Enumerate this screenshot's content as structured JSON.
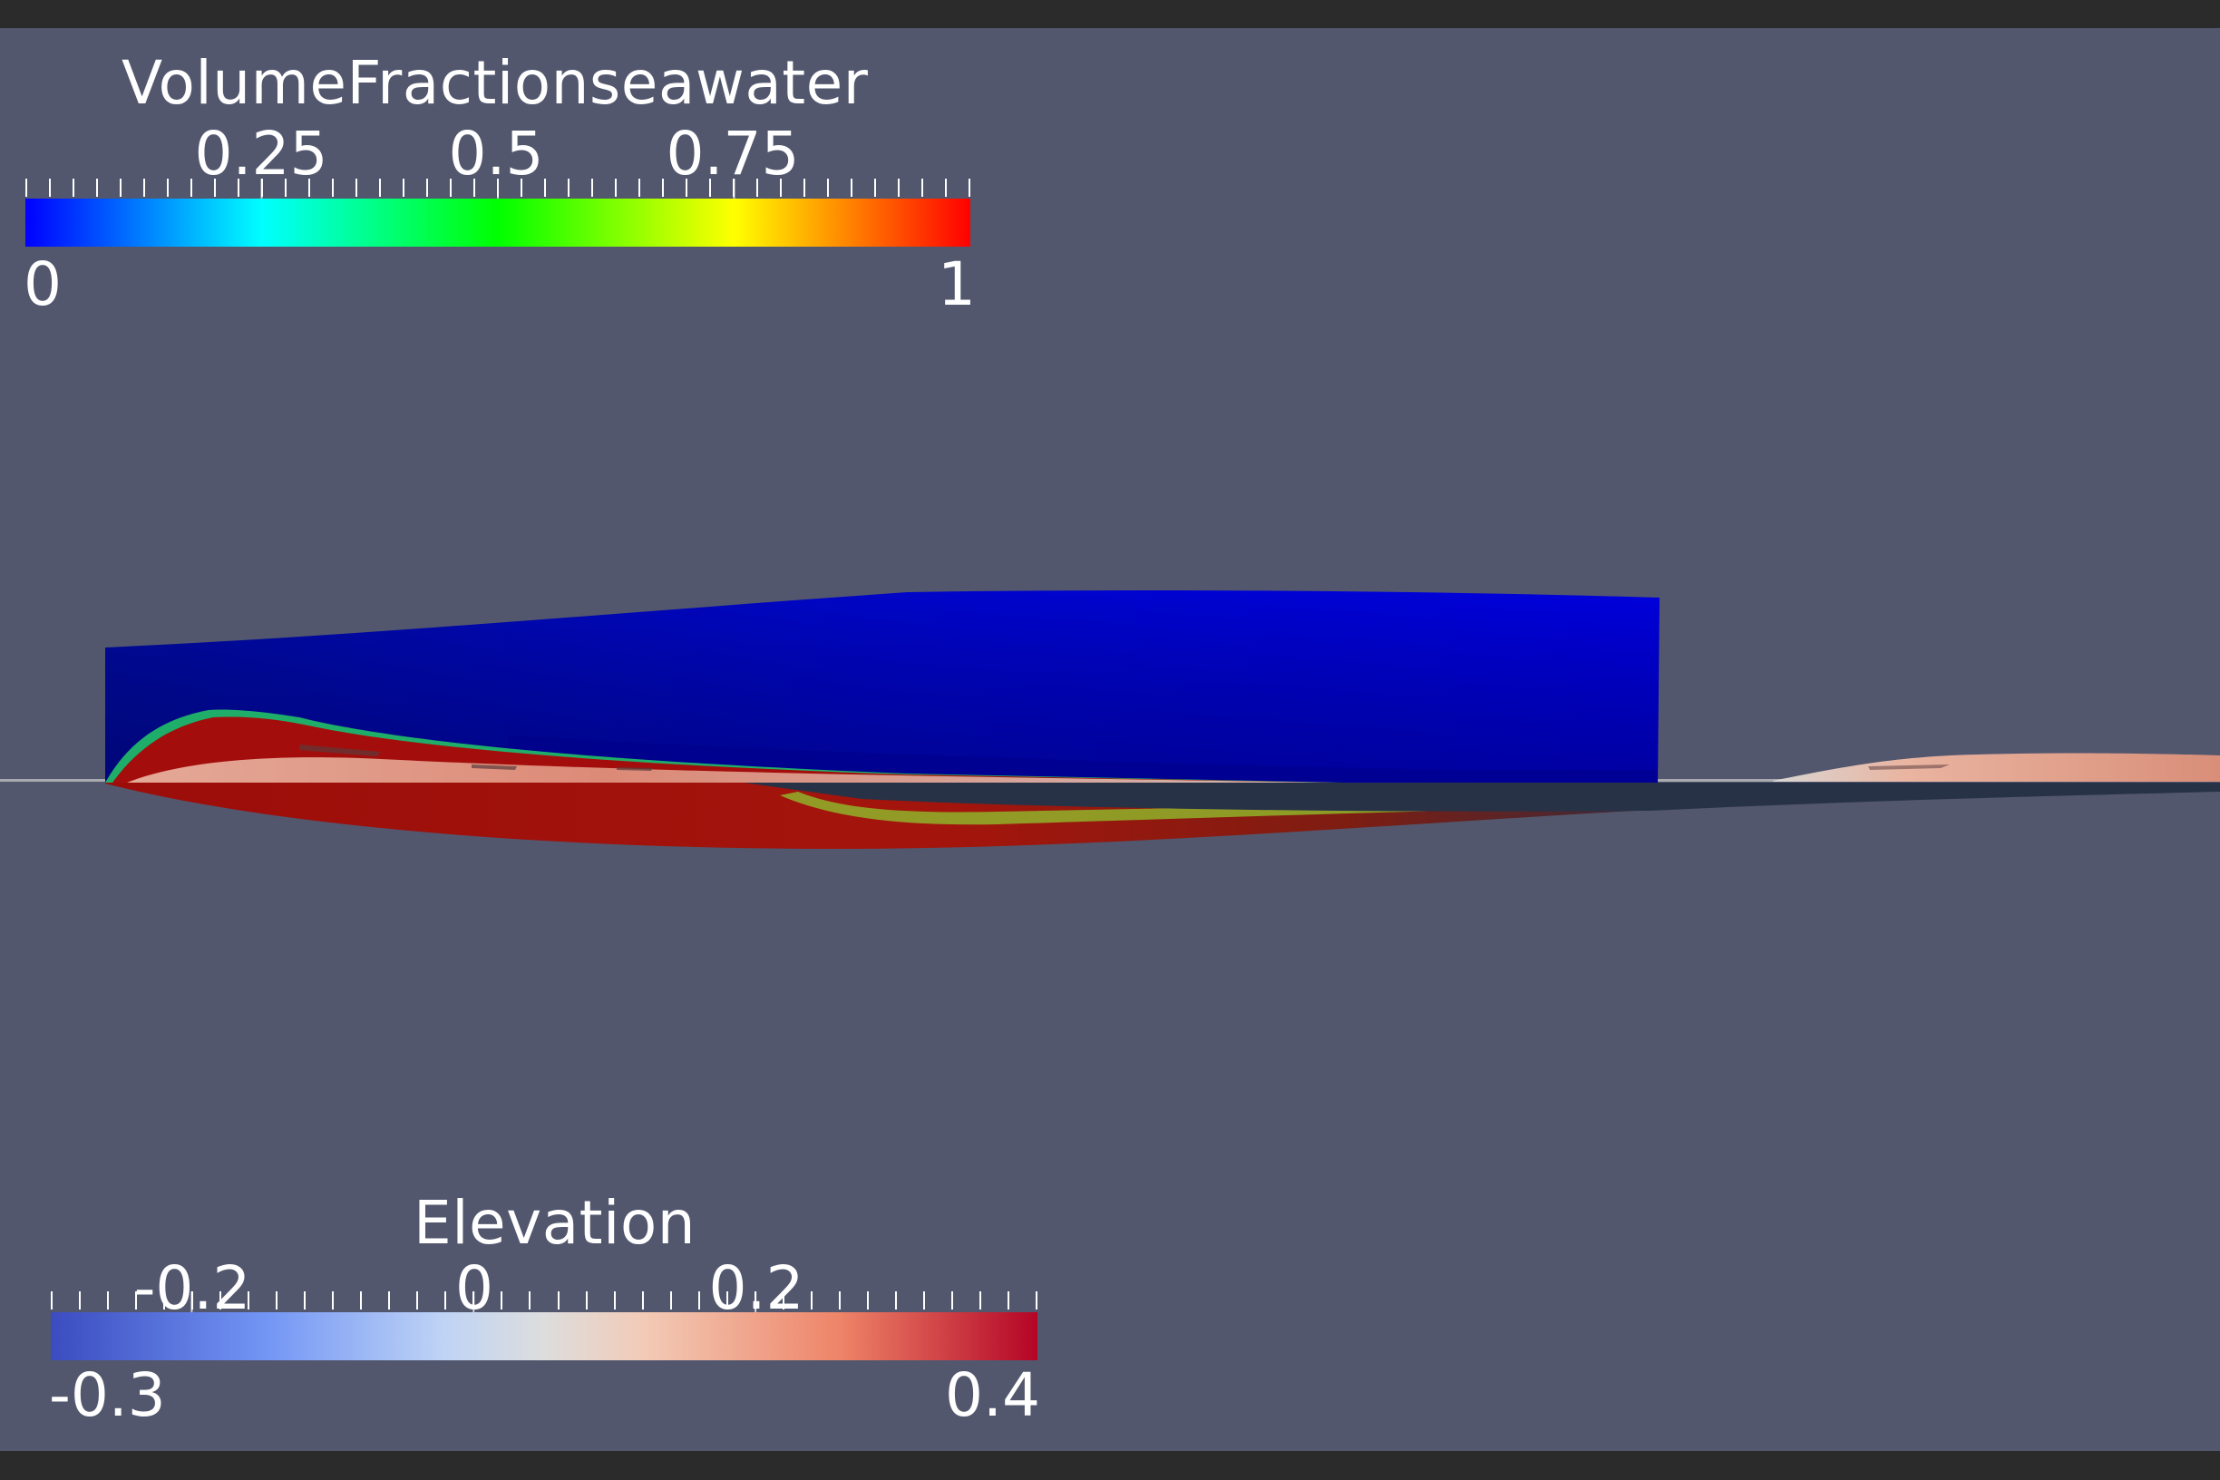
{
  "viewer": {
    "background": "#52576e",
    "frame_color": "#2b2b2b"
  },
  "legends": {
    "volume_fraction": {
      "title": "VolumeFractionseawater",
      "colormap": "rainbow",
      "range": [
        0,
        1
      ],
      "min_label": "0",
      "max_label": "1",
      "tick_labels": [
        "0.25",
        "0.5",
        "0.75"
      ],
      "tick_values": [
        0.25,
        0.5,
        0.75
      ],
      "colors": [
        "#0000ff",
        "#00ffff",
        "#00ff00",
        "#ffff00",
        "#ff0000"
      ]
    },
    "elevation": {
      "title": "Elevation",
      "colormap": "cool-to-warm",
      "range": [
        -0.3,
        0.4
      ],
      "min_label": "-0.3",
      "max_label": "0.4",
      "tick_labels": [
        "-0.2",
        "0",
        "0.2"
      ],
      "tick_values": [
        -0.2,
        0,
        0.2
      ],
      "colors": [
        "#3b4cc0",
        "#dddddd",
        "#b40426"
      ]
    }
  }
}
